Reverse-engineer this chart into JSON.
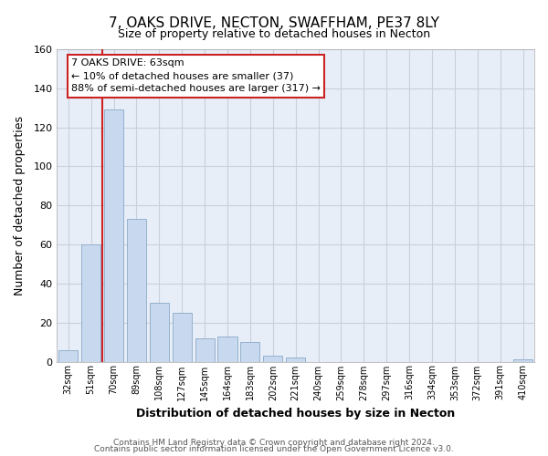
{
  "title": "7, OAKS DRIVE, NECTON, SWAFFHAM, PE37 8LY",
  "subtitle": "Size of property relative to detached houses in Necton",
  "xlabel": "Distribution of detached houses by size in Necton",
  "ylabel": "Number of detached properties",
  "categories": [
    "32sqm",
    "51sqm",
    "70sqm",
    "89sqm",
    "108sqm",
    "127sqm",
    "145sqm",
    "164sqm",
    "183sqm",
    "202sqm",
    "221sqm",
    "240sqm",
    "259sqm",
    "278sqm",
    "297sqm",
    "316sqm",
    "334sqm",
    "353sqm",
    "372sqm",
    "391sqm",
    "410sqm"
  ],
  "values": [
    6,
    60,
    129,
    73,
    30,
    25,
    12,
    13,
    10,
    3,
    2,
    0,
    0,
    0,
    0,
    0,
    0,
    0,
    0,
    0,
    1
  ],
  "bar_color": "#c8d8ee",
  "bar_edge_color": "#8aaac8",
  "ylim": [
    0,
    160
  ],
  "yticks": [
    0,
    20,
    40,
    60,
    80,
    100,
    120,
    140,
    160
  ],
  "property_label": "7 OAKS DRIVE: 63sqm",
  "annotation_line1": "← 10% of detached houses are smaller (37)",
  "annotation_line2": "88% of semi-detached houses are larger (317) →",
  "footer1": "Contains HM Land Registry data © Crown copyright and database right 2024.",
  "footer2": "Contains public sector information licensed under the Open Government Licence v3.0.",
  "fig_background_color": "#ffffff",
  "plot_background": "#e8eef8",
  "grid_color": "#c8d0dc",
  "annotation_box_color": "#ffffff",
  "annotation_box_edge": "#cc2222",
  "property_line_color": "#cc2222",
  "property_line_x": 1.5
}
